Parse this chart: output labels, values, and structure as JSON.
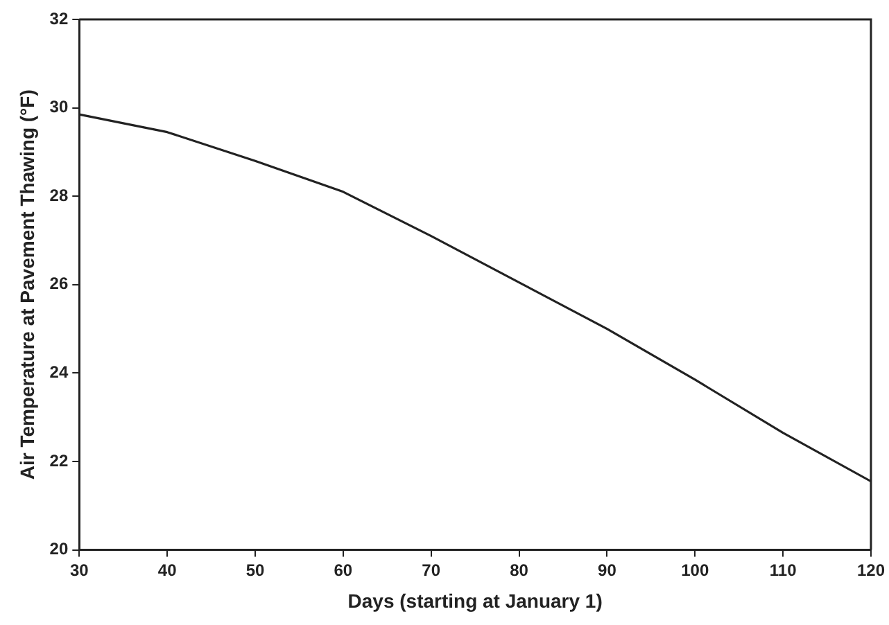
{
  "chart_data": {
    "type": "line",
    "xlabel": "Days (starting at January 1)",
    "ylabel": "Air Temperature at Pavement Thawing (°F)",
    "x": [
      30,
      40,
      50,
      60,
      70,
      80,
      90,
      100,
      110,
      120
    ],
    "series": [
      {
        "color": "#222222",
        "values": [
          29.85,
          29.45,
          28.8,
          28.1,
          27.1,
          26.05,
          25.0,
          23.85,
          22.65,
          21.55
        ]
      }
    ],
    "xlim": [
      30,
      120
    ],
    "xticks": [
      30,
      40,
      50,
      60,
      70,
      80,
      90,
      100,
      110,
      120
    ],
    "ylim": [
      20,
      32
    ],
    "yticks": [
      20,
      22,
      24,
      26,
      28,
      30,
      32
    ],
    "grid": false,
    "legend": false,
    "marker": "none",
    "line_style": "solid"
  }
}
